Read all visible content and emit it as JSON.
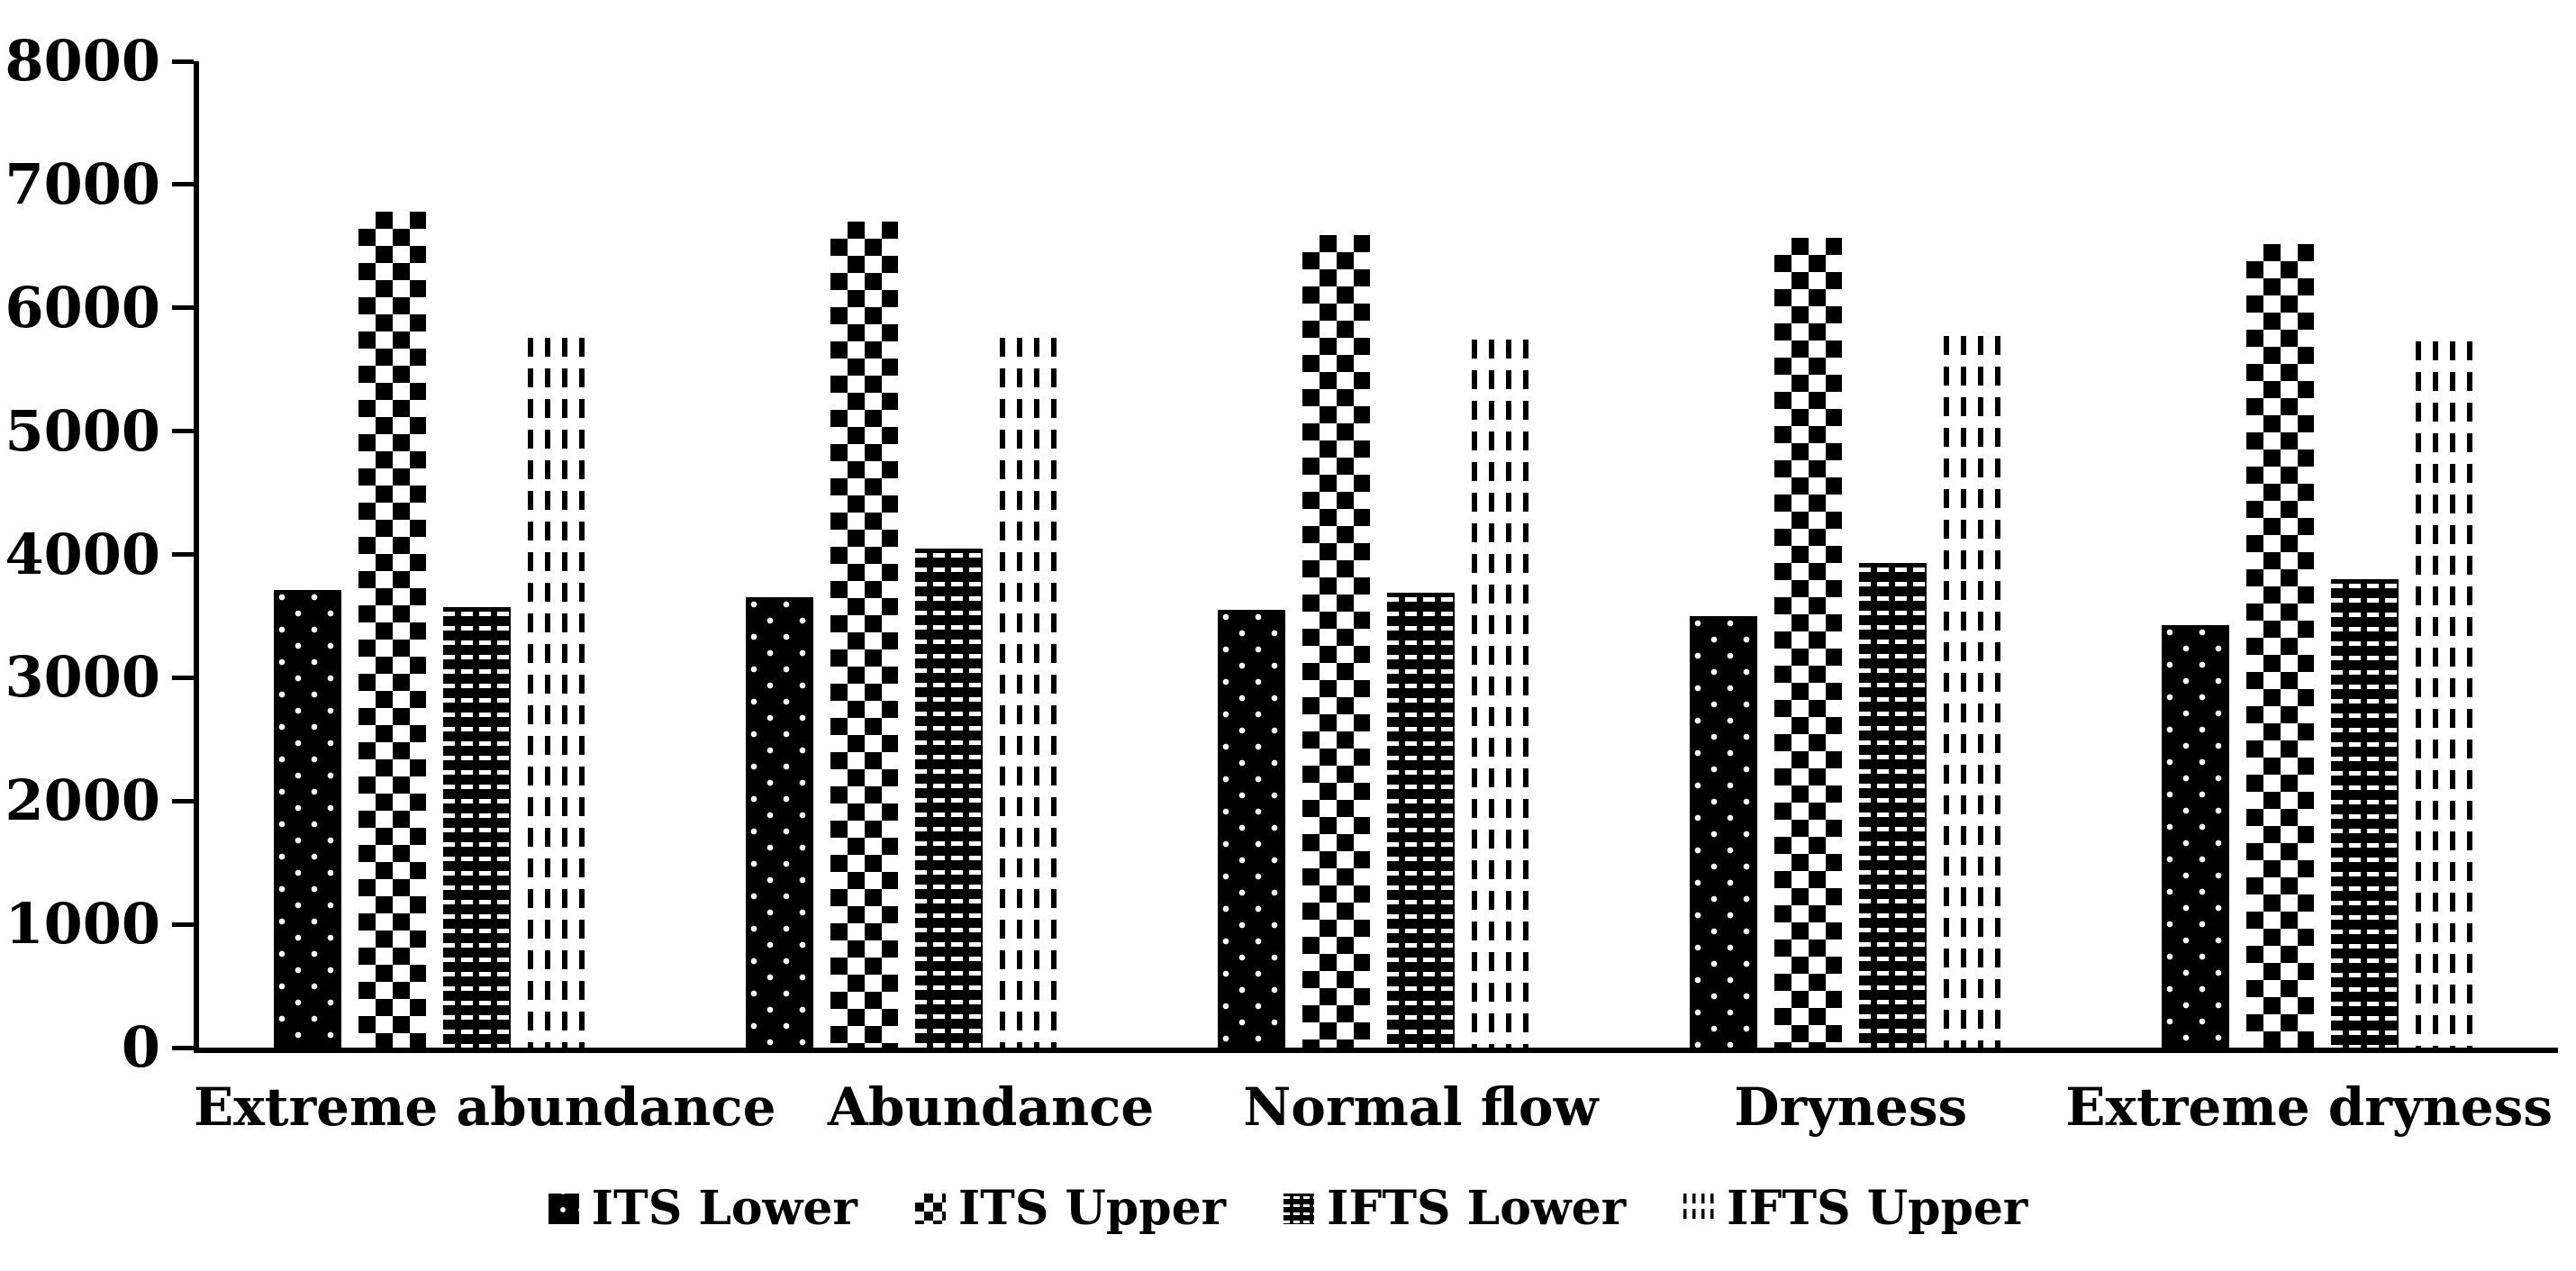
{
  "chart_data": {
    "type": "bar",
    "title": "",
    "xlabel": "",
    "ylabel": "",
    "ylim": [
      0,
      8000
    ],
    "y_tick_step": 1000,
    "y_tick_labels": [
      "0",
      "1000",
      "2000",
      "3000",
      "4000",
      "5000",
      "6000",
      "7000",
      "8000"
    ],
    "grid": false,
    "legend_position": "bottom",
    "categories": [
      "Extreme abundance",
      "Abundance",
      "Normal flow",
      "Dryness",
      "Extreme dryness"
    ],
    "series": [
      {
        "name": "ITS Lower",
        "pattern": "dots",
        "values": [
          3710,
          3650,
          3550,
          3500,
          3430
        ]
      },
      {
        "name": "ITS Upper",
        "pattern": "checker",
        "values": [
          6780,
          6700,
          6590,
          6570,
          6520
        ]
      },
      {
        "name": "IFTS Lower",
        "pattern": "weave",
        "values": [
          3570,
          4050,
          3690,
          3930,
          3800
        ]
      },
      {
        "name": "IFTS Upper",
        "pattern": "dashes",
        "values": [
          5760,
          5760,
          5740,
          5770,
          5730
        ]
      }
    ],
    "colors": {
      "foreground": "#000000",
      "background": "#ffffff"
    }
  }
}
